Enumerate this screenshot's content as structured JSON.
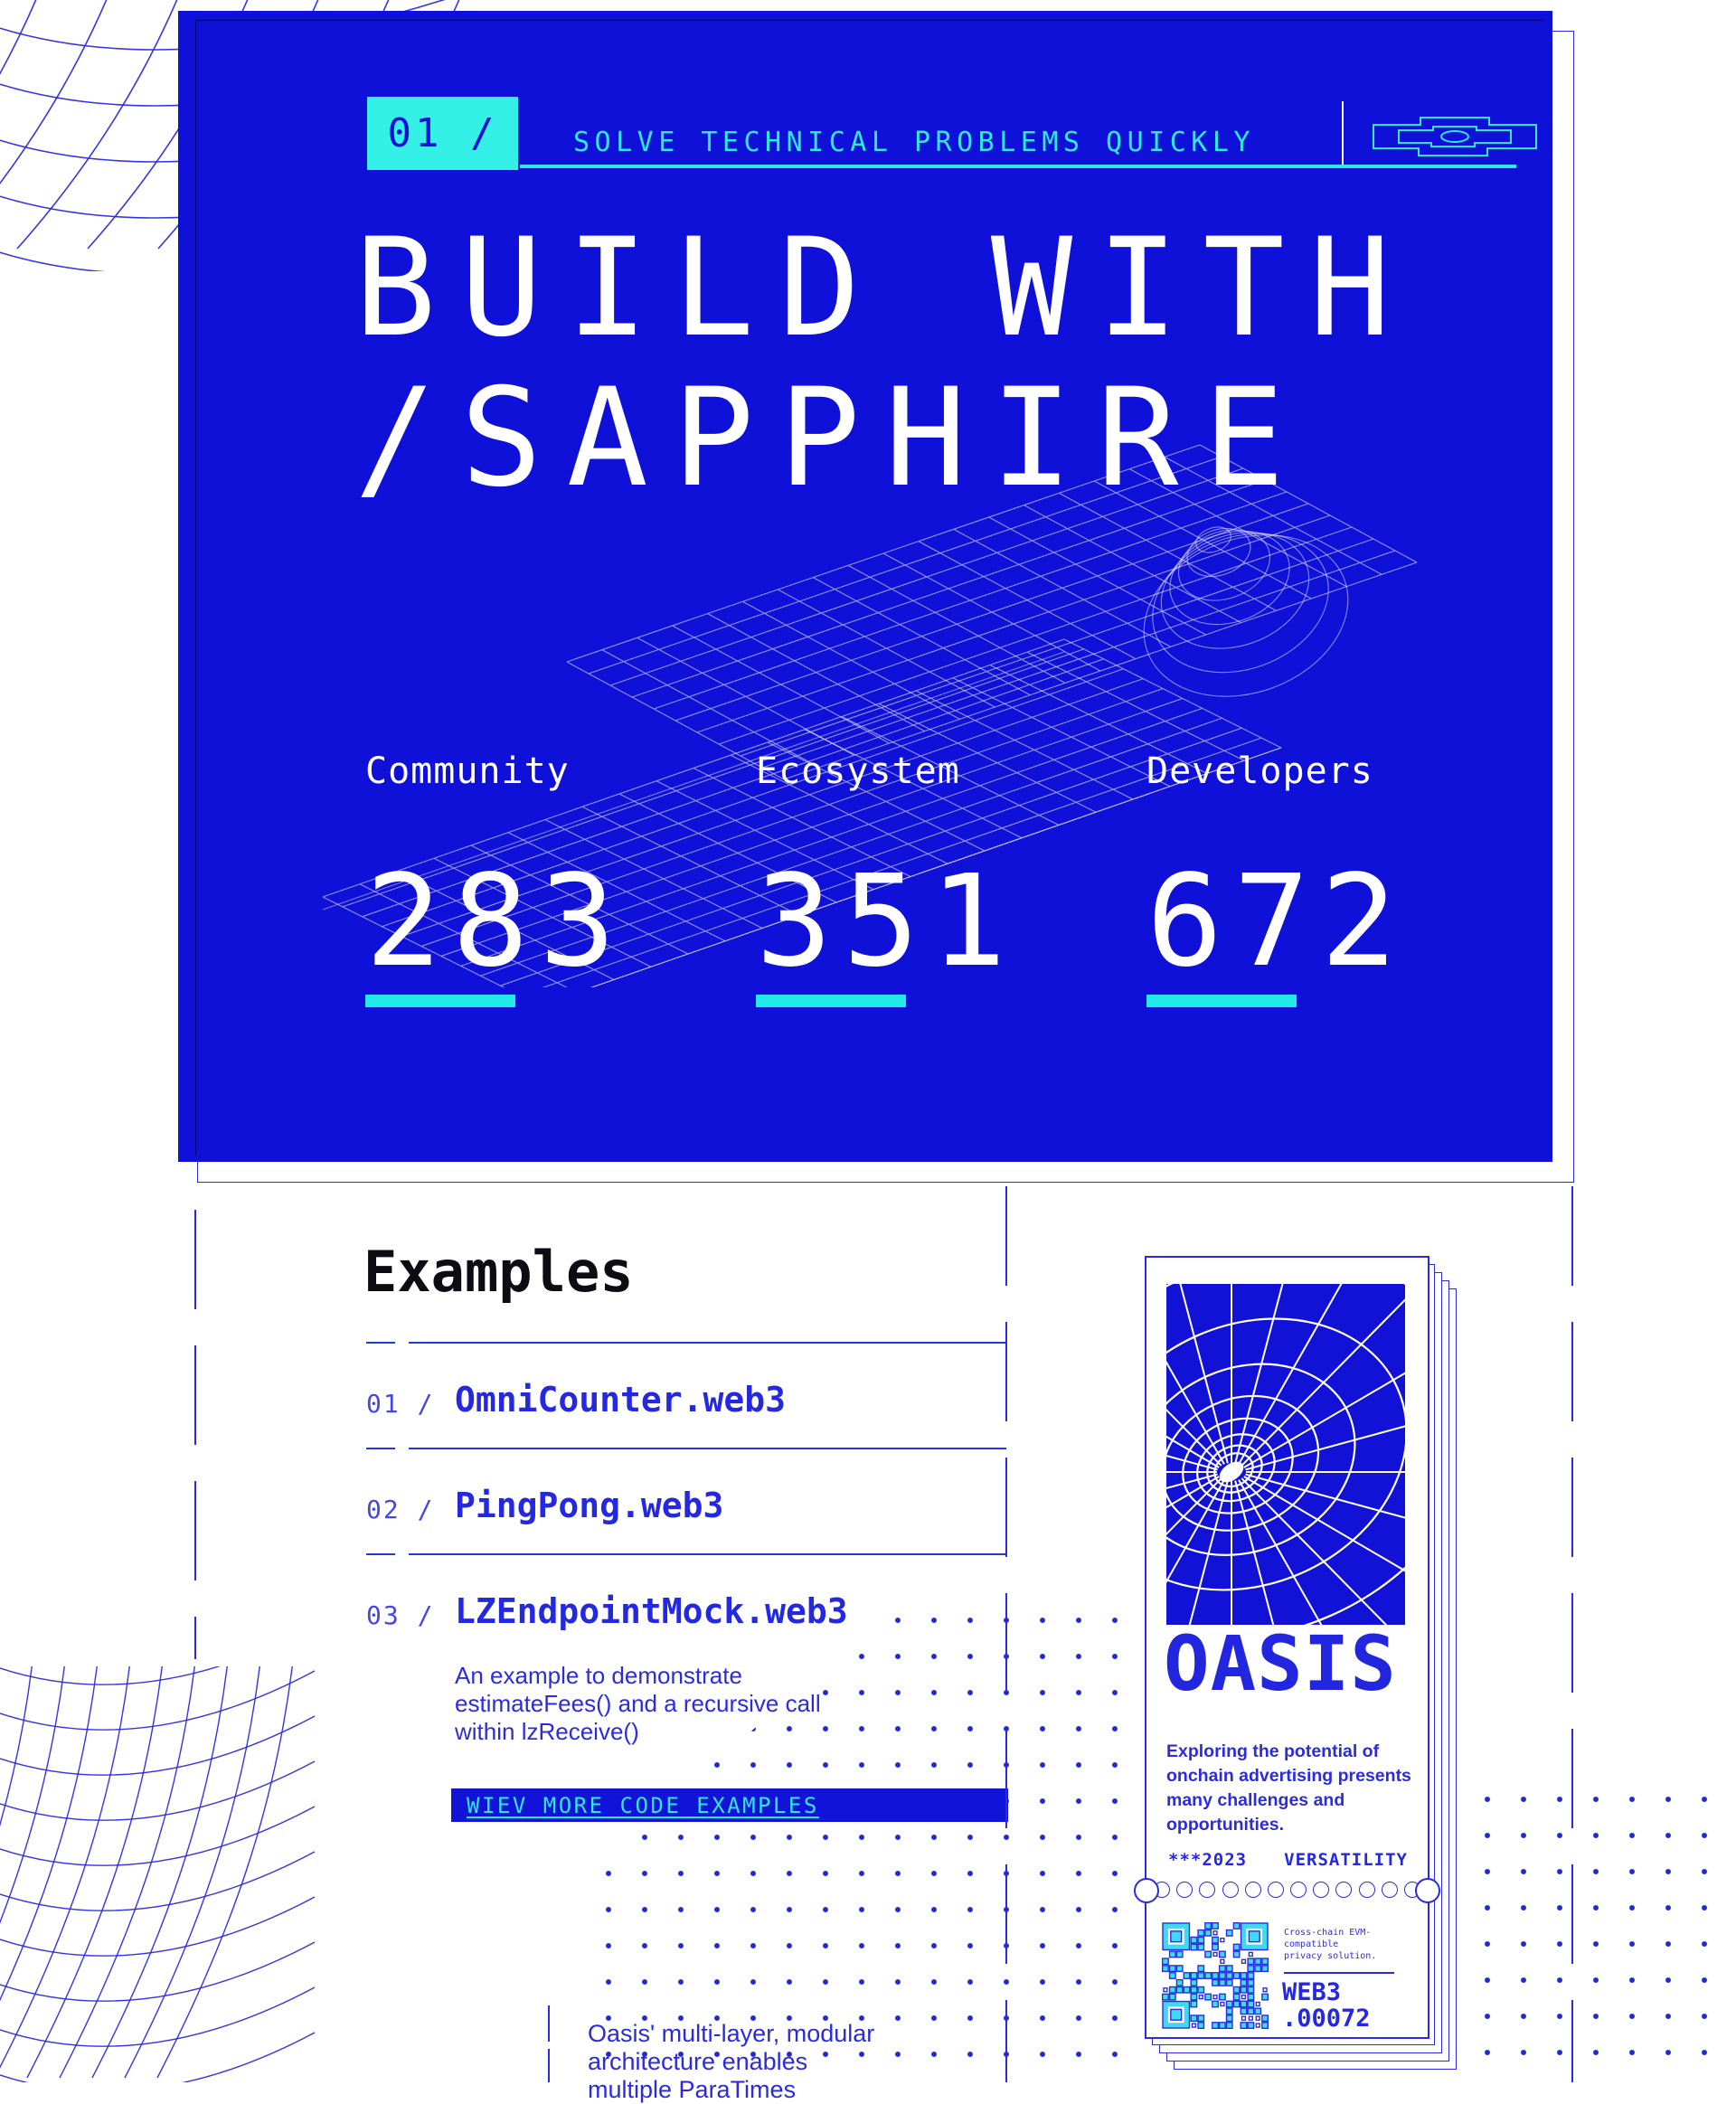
{
  "hero": {
    "badge": "01 /",
    "tagline": "SOLVE TECHNICAL PROBLEMS QUICKLY",
    "title_line1": "BUILD WITH",
    "title_line2": "/SAPPHIRE",
    "stats": [
      {
        "label": "Community",
        "value": "283"
      },
      {
        "label": "Ecosystem",
        "value": "351"
      },
      {
        "label": "Developers",
        "value": "672"
      }
    ]
  },
  "examples": {
    "heading": "Examples",
    "items": [
      {
        "prefix": "01 /",
        "name": "OmniCounter.web3"
      },
      {
        "prefix": "02 /",
        "name": "PingPong.web3"
      },
      {
        "prefix": "03 /",
        "name": "LZEndpointMock.web3",
        "description": "An example to demonstrate estimateFees() and a recursive call within lzReceive()"
      }
    ],
    "cta": "WIEV MORE CODE EXAMPLES"
  },
  "card": {
    "brand": "OASIS",
    "blurb": "Exploring the potential of onchain advertising presents many challenges and opportunities.",
    "year": "***2023",
    "tag": "VERSATILITY",
    "qr_caption_line1": "Cross-chain EVM-compatible",
    "qr_caption_line2": "privacy solution.",
    "code_line1": "WEB3",
    "code_line2": ".00072"
  },
  "footer": {
    "line1": "Oasis' multi-layer, modular",
    "line2": "architecture enables",
    "line3": "multiple ParaTimes"
  },
  "colors": {
    "hero_blue": "#0f11d8",
    "cyan": "#2ee9e0",
    "badge_cyan": "#35f0e6",
    "link_blue": "#2428e0",
    "dot_blue": "#232acf",
    "outline_blue": "#2a2ae0",
    "qr_cyan": "#3fd9f2",
    "heading_black": "#0c0c12",
    "white": "#ffffff"
  }
}
